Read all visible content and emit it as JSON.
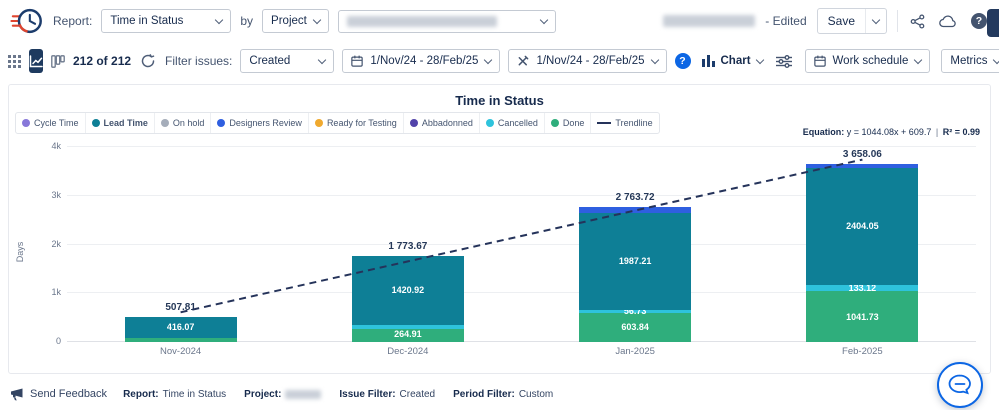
{
  "colors": {
    "accent_blue": "#0C66E4",
    "selected_view_bg": "#1E3A5F",
    "trendline": "#25335A"
  },
  "icons": {
    "help_glyph": "?"
  },
  "header": {
    "report_label": "Report:",
    "report_type": "Time in Status",
    "by_label": "by",
    "group_by": "Project",
    "edited_label": "- Edited",
    "save_label": "Save"
  },
  "toolbar": {
    "issue_count": "212 of 212",
    "filter_label": "Filter issues:",
    "issue_filter": "Created",
    "created_range": "1/Nov/24 - 28/Feb/25",
    "work_range": "1/Nov/24 - 28/Feb/25",
    "chart_label": "Chart",
    "work_schedule_label": "Work schedule",
    "metrics_label": "Metrics"
  },
  "chart_data": {
    "type": "bar",
    "stacked": true,
    "title": "Time in Status",
    "ylabel": "Days",
    "ylim": [
      0,
      4000
    ],
    "grid": true,
    "legend_position": "top-left",
    "yticks": [
      {
        "value": 0,
        "label": "0"
      },
      {
        "value": 1000,
        "label": "1k"
      },
      {
        "value": 2000,
        "label": "2k"
      },
      {
        "value": 3000,
        "label": "3k"
      },
      {
        "value": 4000,
        "label": "4k"
      }
    ],
    "categories": [
      "Nov-2024",
      "Dec-2024",
      "Jan-2025",
      "Feb-2025"
    ],
    "legend": [
      {
        "label": "Cycle Time",
        "color": "#8777D9",
        "marker": "dot",
        "bold": false
      },
      {
        "label": "Lead Time",
        "color": "#0E7F96",
        "marker": "dot",
        "bold": true
      },
      {
        "label": "On hold",
        "color": "#A5ADBA",
        "marker": "dot",
        "bold": false
      },
      {
        "label": "Designers Review",
        "color": "#2F5FE0",
        "marker": "dot",
        "bold": false
      },
      {
        "label": "Ready for Testing",
        "color": "#F0A92E",
        "marker": "dot",
        "bold": false
      },
      {
        "label": "Abbadonned",
        "color": "#5243AA",
        "marker": "dot",
        "bold": false
      },
      {
        "label": "Cancelled",
        "color": "#2EC3DC",
        "marker": "dot",
        "bold": false
      },
      {
        "label": "Done",
        "color": "#2FAE7C",
        "marker": "dot",
        "bold": false
      },
      {
        "label": "Trendline",
        "color": "#25335A",
        "marker": "line",
        "bold": false
      }
    ],
    "bars": [
      {
        "category": "Nov-2024",
        "total": 507.81,
        "total_label": "507.81",
        "segments": [
          {
            "status": "Done",
            "value": 91.55,
            "label": ""
          },
          {
            "status": "Cancelled",
            "value": 0.19,
            "label": "0.19"
          },
          {
            "status": "Lead Time",
            "value": 416.07,
            "label": "416.07"
          }
        ]
      },
      {
        "category": "Dec-2024",
        "total": 1773.67,
        "total_label": "1 773.67",
        "segments": [
          {
            "status": "Done",
            "value": 264.91,
            "label": "264.91"
          },
          {
            "status": "Cancelled",
            "value": 87.84,
            "label": ""
          },
          {
            "status": "Lead Time",
            "value": 1420.92,
            "label": "1420.92"
          }
        ]
      },
      {
        "category": "Jan-2025",
        "total": 2763.72,
        "total_label": "2 763.72",
        "segments": [
          {
            "status": "Done",
            "value": 603.84,
            "label": "603.84"
          },
          {
            "status": "Cancelled",
            "value": 56.73,
            "label": "56.73"
          },
          {
            "status": "Lead Time",
            "value": 1987.21,
            "label": "1987.21"
          },
          {
            "status": "Designers Review",
            "value": 115.94,
            "label": ""
          }
        ]
      },
      {
        "category": "Feb-2025",
        "total": 3658.06,
        "total_label": "3 658.06",
        "segments": [
          {
            "status": "Done",
            "value": 1041.73,
            "label": "1041.73"
          },
          {
            "status": "Cancelled",
            "value": 133.12,
            "label": "133.12"
          },
          {
            "status": "Lead Time",
            "value": 2404.05,
            "label": "2404.05"
          },
          {
            "status": "Designers Review",
            "value": 79.16,
            "label": ""
          }
        ]
      }
    ],
    "trendline": {
      "equation_label": "Equation:",
      "equation": "y = 1044.08x + 609.7",
      "separator": "|",
      "r2": "R² = 0.99",
      "points": [
        609.7,
        1653.78,
        2697.86,
        3741.94
      ]
    }
  },
  "footer": {
    "send_feedback": "Send Feedback",
    "items": [
      {
        "label": "Report:",
        "value": "Time in Status",
        "redacted": false
      },
      {
        "label": "Project:",
        "value": "",
        "redacted": true
      },
      {
        "label": "Issue Filter:",
        "value": "Created",
        "redacted": false
      },
      {
        "label": "Period Filter:",
        "value": "Custom",
        "redacted": false
      }
    ]
  }
}
